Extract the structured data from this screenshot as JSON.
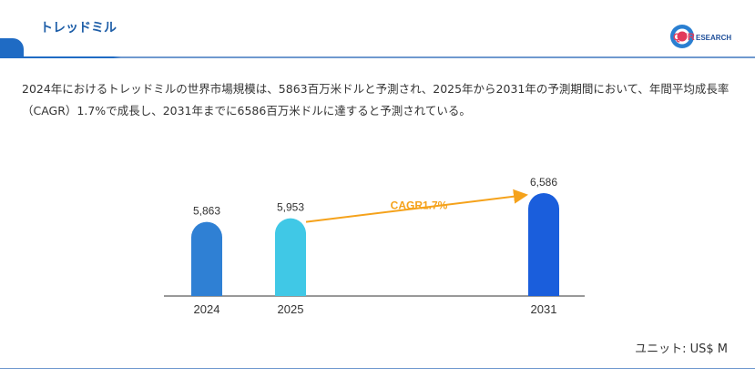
{
  "header": {
    "title": "トレッドミル",
    "logo_text_1": "QYR",
    "logo_text_2": "ESEARCH"
  },
  "description": "2024年におけるトレッドミルの世界市場規模は、5863百万米ドルと予測され、2025年から2031年の予測期間において、年間平均成長率（CAGR）1.7%で成長し、2031年までに6586百万米ドルに達すると予測されている。",
  "unit_label": "ユニット: US$ M",
  "colors": {
    "accent": "#1f6bc4",
    "bar_2024": "#2f80d4",
    "bar_2025": "#40c8e6",
    "bar_2031": "#1a5edc",
    "cagr": "#f5a21b"
  },
  "chart_data": {
    "type": "bar",
    "categories": [
      "2024",
      "2025",
      "2031"
    ],
    "values": [
      5863,
      5953,
      6586
    ],
    "value_labels": [
      "5,863",
      "5,953",
      "6,586"
    ],
    "annotation": "CAGR1.7%",
    "title": "",
    "xlabel": "",
    "ylabel": ""
  }
}
